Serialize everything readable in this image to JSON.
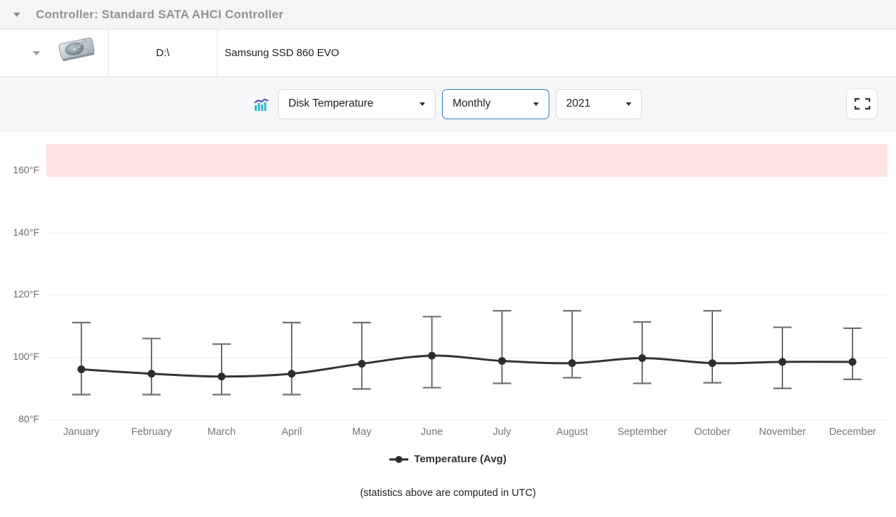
{
  "header": {
    "title": "Controller: Standard SATA AHCI Controller"
  },
  "drive_row": {
    "drive_letter": "D:\\",
    "model": "Samsung SSD 860 EVO"
  },
  "toolbar": {
    "metric_dropdown": "Disk Temperature",
    "period_dropdown": "Monthly",
    "year_dropdown": "2021",
    "icons": {
      "chart_icon": "bar-line-chart-icon",
      "fullscreen_icon": "fullscreen-icon"
    }
  },
  "chart_data": {
    "type": "line",
    "title": "Disk Temperature, Monthly, 2021",
    "categories": [
      "January",
      "February",
      "March",
      "April",
      "May",
      "June",
      "July",
      "August",
      "September",
      "October",
      "November",
      "December"
    ],
    "series": [
      {
        "name": "Temperature (Avg)",
        "values": [
          96.1,
          94.7,
          93.8,
          94.7,
          97.9,
          100.5,
          98.8,
          98.1,
          99.7,
          98.1,
          98.5,
          98.5
        ],
        "error_max": [
          111.1,
          106.0,
          104.2,
          111.1,
          111.1,
          113.0,
          114.9,
          114.9,
          111.3,
          114.9,
          109.6,
          109.3
        ],
        "error_min": [
          88.0,
          88.0,
          88.0,
          88.0,
          89.8,
          90.2,
          91.6,
          93.4,
          91.6,
          91.8,
          90.0,
          92.9
        ]
      }
    ],
    "unit": "°F",
    "yticks": [
      80,
      100,
      120,
      140,
      160
    ],
    "ytick_labels": [
      "80°F",
      "100°F",
      "120°F",
      "140°F",
      "160°F"
    ],
    "ylim": [
      80,
      168.5
    ],
    "danger_zone_above": 158,
    "grid": true,
    "legend_position": "bottom",
    "legend": "Temperature (Avg)",
    "colors": {
      "line": "#333333",
      "point": "#2d2d2d",
      "whisker": "#4a4a4a",
      "whisker_cap": "#707070",
      "danger_zone": "#ffe3e0",
      "accent_border": "#2b7ac0"
    }
  },
  "footer": {
    "note": "(statistics above are computed in UTC)"
  }
}
